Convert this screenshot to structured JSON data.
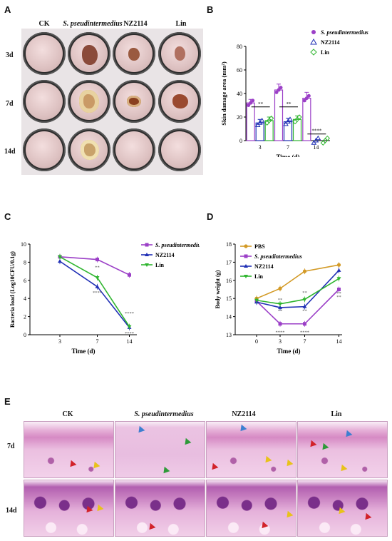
{
  "panels": {
    "A": "A",
    "B": "B",
    "C": "C",
    "D": "D",
    "E": "E"
  },
  "panelA": {
    "columns": [
      "CK",
      "S. pseudintermedius",
      "NZ2114",
      "Lin"
    ],
    "rows": [
      "3d",
      "7d",
      "14d"
    ]
  },
  "panelE": {
    "columns": [
      "CK",
      "S. pseudintermedius",
      "NZ2114",
      "Lin"
    ],
    "rows": [
      "7d",
      "14d"
    ]
  },
  "colors": {
    "spseud": "#9b3fc7",
    "nz": "#1f2fb5",
    "lin": "#2fb52f",
    "pbs": "#d39a26"
  },
  "chart_data": [
    {
      "type": "bar",
      "panel": "B",
      "ylabel": "Skin damage area (mm²)",
      "xlabel": "Time (d)",
      "categories": [
        "3",
        "7",
        "14"
      ],
      "ylim": [
        0,
        80
      ],
      "yticks": [
        0,
        20,
        40,
        60,
        80
      ],
      "series": [
        {
          "name": "S. pseudintermedius",
          "values": [
            32,
            43,
            36
          ],
          "errors": [
            3,
            5,
            5
          ],
          "marker": "●"
        },
        {
          "name": "NZ2114",
          "values": [
            15,
            16,
            0
          ],
          "errors": [
            3,
            3,
            0
          ],
          "marker": "△"
        },
        {
          "name": "Lin",
          "values": [
            17,
            18,
            0
          ],
          "errors": [
            3,
            3,
            0
          ],
          "marker": "◇"
        }
      ],
      "annotations": [
        "**",
        "**",
        "****"
      ],
      "legend": "top-right"
    },
    {
      "type": "line",
      "panel": "C",
      "ylabel": "Bacteria load (Log10CFU/0.1g)",
      "xlabel": "Time (d)",
      "x": [
        "3",
        "7",
        "14"
      ],
      "ylim": [
        0,
        10
      ],
      "yticks": [
        0,
        2,
        4,
        6,
        8,
        10
      ],
      "series": [
        {
          "name": "S. pseudintermedius",
          "values": [
            8.6,
            8.3,
            6.6
          ]
        },
        {
          "name": "NZ2114",
          "values": [
            8.1,
            5.3,
            0.8
          ]
        },
        {
          "name": "Lin",
          "values": [
            8.6,
            6.3,
            0.9
          ]
        }
      ],
      "annotations": [
        "**",
        "****",
        "****",
        "****"
      ],
      "legend": "top-right"
    },
    {
      "type": "line",
      "panel": "D",
      "ylabel": "Body weight (g)",
      "xlabel": "Time (d)",
      "x": [
        "0",
        "3",
        "7",
        "14"
      ],
      "ylim": [
        13,
        18
      ],
      "yticks": [
        13,
        14,
        15,
        16,
        17,
        18
      ],
      "series": [
        {
          "name": "PBS",
          "values": [
            15.0,
            15.55,
            16.5,
            16.85
          ]
        },
        {
          "name": "S. pseudintermedius",
          "values": [
            14.85,
            13.6,
            13.6,
            15.5
          ]
        },
        {
          "name": "NZ2114",
          "values": [
            14.8,
            14.5,
            14.55,
            16.55
          ]
        },
        {
          "name": "Lin",
          "values": [
            14.9,
            14.7,
            14.95,
            16.1
          ]
        }
      ],
      "annotations": [
        "**",
        "**",
        "**",
        "**",
        "****",
        "****",
        "**",
        "**"
      ],
      "legend": "top-right"
    }
  ]
}
